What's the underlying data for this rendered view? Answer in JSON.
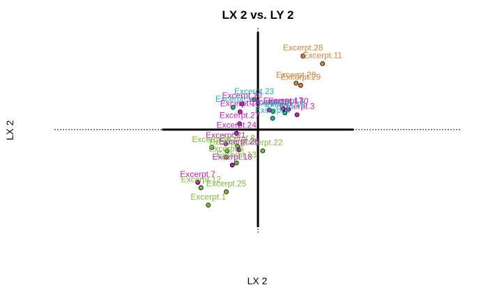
{
  "chart_data": {
    "type": "scatter",
    "title": "LX 2 vs. LY 2",
    "xlabel": "LX 2",
    "ylabel": "LX 2",
    "xlim": [
      -5,
      5
    ],
    "ylim": [
      -5,
      5
    ],
    "grid": false,
    "points": [
      {
        "label": "Excerpt.28",
        "x": 2.35,
        "y": 3.77,
        "color": "#CD853F"
      },
      {
        "label": "Excerpt.11",
        "x": 3.37,
        "y": 3.38,
        "color": "#CD853F"
      },
      {
        "label": "Excerpt.20",
        "x": 1.99,
        "y": 2.38,
        "color": "#CD853F"
      },
      {
        "label": "Excerpt.29",
        "x": 2.23,
        "y": 2.27,
        "color": "#CD853F"
      },
      {
        "label": "Excerpt.23",
        "x": -0.2,
        "y": 1.54,
        "color": "#20B2AA"
      },
      {
        "label": "Excerpt.10",
        "x": -0.83,
        "y": 1.32,
        "color": "#C020C0"
      },
      {
        "label": "Excerpt.17",
        "x": 1.32,
        "y": 1.06,
        "color": "#C020C0"
      },
      {
        "label": "Excerpt.30",
        "x": 1.59,
        "y": 1.03,
        "color": "#C020C0"
      },
      {
        "label": "Excerpt.3",
        "x": 2.04,
        "y": 0.76,
        "color": "#C020C0"
      },
      {
        "label": "Excerpt.5",
        "x": -1.3,
        "y": 1.14,
        "color": "#20B2AA"
      },
      {
        "label": "Excerpt.16",
        "x": 0.59,
        "y": 1.0,
        "color": "#C020C0"
      },
      {
        "label": "Excerpt.2",
        "x": 0.79,
        "y": 0.93,
        "color": "#20B2AA"
      },
      {
        "label": "Excerpt.19",
        "x": 1.41,
        "y": 0.86,
        "color": "#20B2AA"
      },
      {
        "label": "Excerpt.15",
        "x": -0.93,
        "y": 0.91,
        "color": "#C020C0"
      },
      {
        "label": "Excerpt.4",
        "x": 0.77,
        "y": 0.58,
        "color": "#20B2AA"
      },
      {
        "label": "Excerpt.27",
        "x": -0.96,
        "y": 0.3,
        "color": "#C020C0"
      },
      {
        "label": "Excerpt.24",
        "x": -1.12,
        "y": -0.19,
        "color": "#C020C0"
      },
      {
        "label": "Excerpt.22",
        "x": 0.25,
        "y": -1.09,
        "color": "#7DB93D"
      },
      {
        "label": "Excerpt.21",
        "x": -1.68,
        "y": -0.72,
        "color": "#C020C0"
      },
      {
        "label": "Excerpt.8",
        "x": -1.07,
        "y": -0.85,
        "color": "#7DB93D"
      },
      {
        "label": "Excerpt.9",
        "x": -1.61,
        "y": -1.09,
        "color": "#7DB93D"
      },
      {
        "label": "Excerpt.26",
        "x": -0.99,
        "y": -1.04,
        "color": "#C020C0"
      },
      {
        "label": "Excerpt.6",
        "x": -1.65,
        "y": -1.41,
        "color": "#7DB93D"
      },
      {
        "label": "Excerpt.18",
        "x": -1.34,
        "y": -1.82,
        "color": "#C020C0"
      },
      {
        "label": "Excerpt.13",
        "x": -1.12,
        "y": -1.71,
        "color": "#7DB93D"
      },
      {
        "label": "Excerpt.7",
        "x": -3.14,
        "y": -2.71,
        "color": "#C020C0"
      },
      {
        "label": "Excerpt.12",
        "x": -2.97,
        "y": -2.98,
        "color": "#7DB93D"
      },
      {
        "label": "Excerpt.25",
        "x": -1.65,
        "y": -3.19,
        "color": "#7DB93D"
      },
      {
        "label": "Excerpt.1",
        "x": -2.59,
        "y": -3.87,
        "color": "#7DB93D"
      },
      {
        "label": "Excerpt.14",
        "x": -2.4,
        "y": -0.92,
        "color": "#7DB93D"
      }
    ]
  }
}
